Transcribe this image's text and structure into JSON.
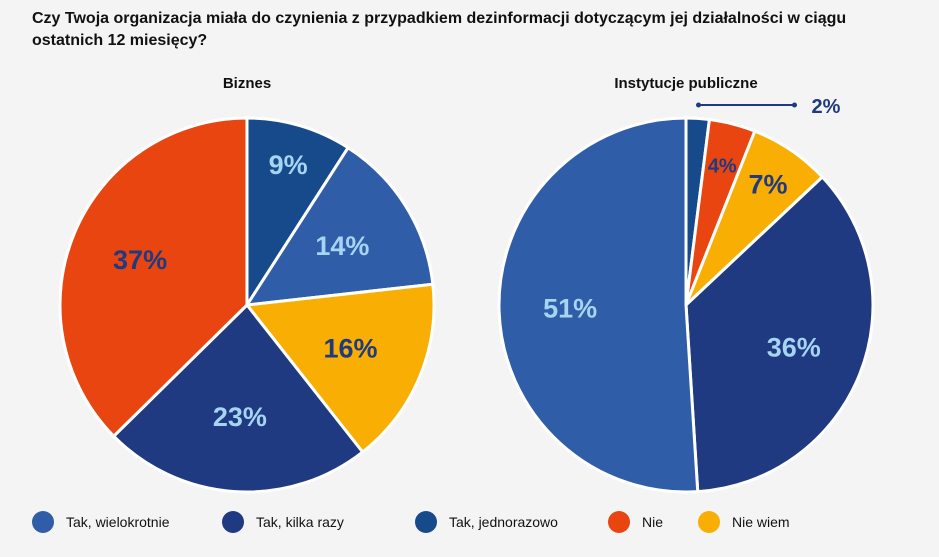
{
  "title": "Czy Twoja organizacja miała do czynienia z przypadkiem dezinformacji dotyczącym jej działalności w ciągu ostatnich 12 miesięcy?",
  "legend": [
    {
      "label": "Tak, wielokrotnie",
      "color": "#2f5da8"
    },
    {
      "label": "Tak, kilka razy",
      "color": "#1f3a80"
    },
    {
      "label": "Tak, jednorazowo",
      "color": "#174a8b"
    },
    {
      "label": "Nie",
      "color": "#e84511"
    },
    {
      "label": "Nie wiem",
      "color": "#f8ae03"
    }
  ],
  "chart_data": [
    {
      "type": "pie",
      "title": "Biznes",
      "slices": [
        {
          "category": "Tak, jednorazowo",
          "value": 9,
          "label": "9%"
        },
        {
          "category": "Tak, wielokrotnie",
          "value": 14,
          "label": "14%"
        },
        {
          "category": "Nie wiem",
          "value": 16,
          "label": "16%"
        },
        {
          "category": "Tak, kilka razy",
          "value": 23,
          "label": "23%"
        },
        {
          "category": "Nie",
          "value": 37,
          "label": "37%"
        }
      ]
    },
    {
      "type": "pie",
      "title": "Instytucje publiczne",
      "slices": [
        {
          "category": "Tak, jednorazowo",
          "value": 2,
          "label": "2%"
        },
        {
          "category": "Nie",
          "value": 4,
          "label": "4%"
        },
        {
          "category": "Nie wiem",
          "value": 7,
          "label": "7%"
        },
        {
          "category": "Tak, kilka razy",
          "value": 36,
          "label": "36%"
        },
        {
          "category": "Tak, wielokrotnie",
          "value": 51,
          "label": "51%"
        }
      ]
    }
  ]
}
